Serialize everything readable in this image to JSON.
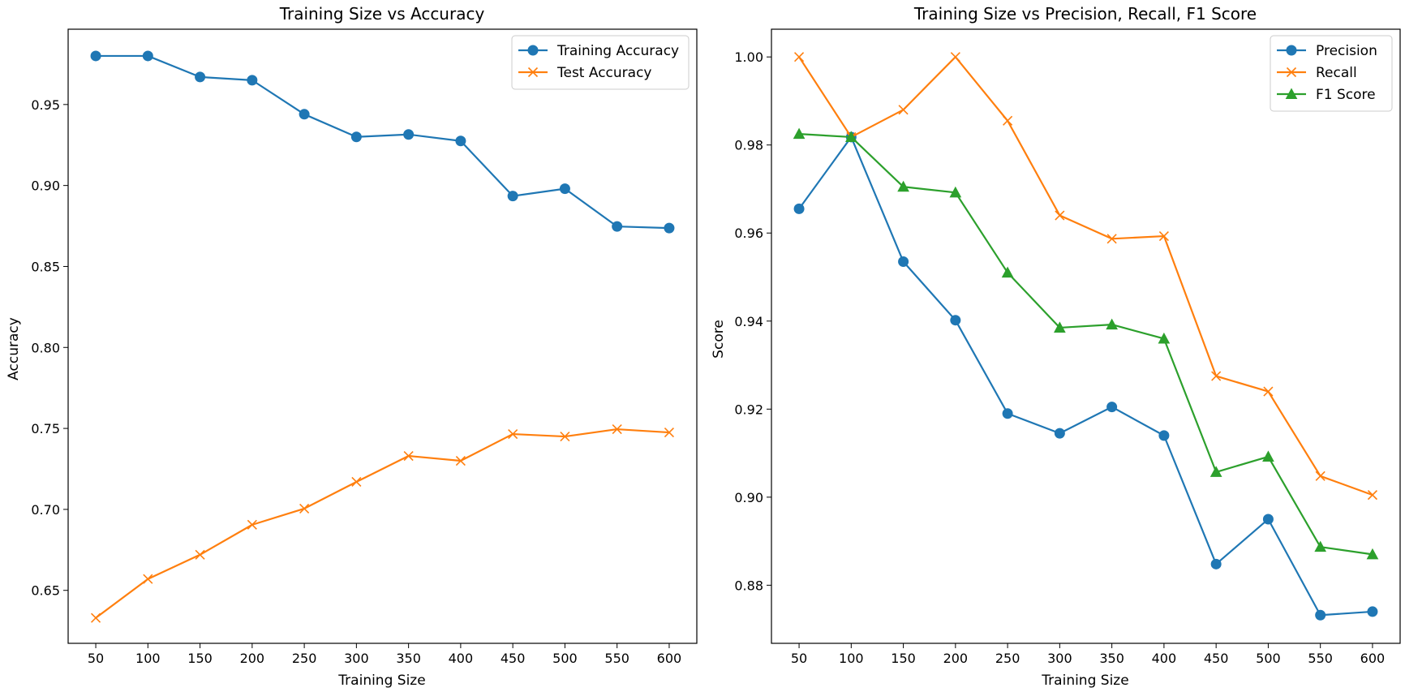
{
  "chart_data": [
    {
      "type": "line",
      "title": "Training Size vs Accuracy",
      "xlabel": "Training Size",
      "ylabel": "Accuracy",
      "x": [
        50,
        100,
        150,
        200,
        250,
        300,
        350,
        400,
        450,
        500,
        550,
        600
      ],
      "xticks": [
        "50",
        "100",
        "150",
        "200",
        "250",
        "300",
        "350",
        "400",
        "450",
        "500",
        "550",
        "600"
      ],
      "xlim": [
        23.5,
        626.5
      ],
      "ylim": [
        0.6173,
        0.9965
      ],
      "yticks": [
        "0.65",
        "0.70",
        "0.75",
        "0.80",
        "0.85",
        "0.90",
        "0.95"
      ],
      "ytick_values": [
        0.65,
        0.7,
        0.75,
        0.8,
        0.85,
        0.9,
        0.95
      ],
      "legend_position": "upper right",
      "grid": false,
      "series": [
        {
          "name": "Training Accuracy",
          "color": "#1f77b4",
          "marker": "circle",
          "values": [
            0.98,
            0.98,
            0.967,
            0.965,
            0.944,
            0.93,
            0.9315,
            0.9275,
            0.8935,
            0.898,
            0.8747,
            0.8737
          ]
        },
        {
          "name": "Test Accuracy",
          "color": "#ff7f0e",
          "marker": "x",
          "values": [
            0.633,
            0.657,
            0.672,
            0.6905,
            0.7005,
            0.717,
            0.733,
            0.73,
            0.7465,
            0.745,
            0.7495,
            0.7475
          ]
        }
      ]
    },
    {
      "type": "line",
      "title": "Training Size vs Precision, Recall, F1 Score",
      "xlabel": "Training Size",
      "ylabel": "Score",
      "x": [
        50,
        100,
        150,
        200,
        250,
        300,
        350,
        400,
        450,
        500,
        550,
        600
      ],
      "xticks": [
        "50",
        "100",
        "150",
        "200",
        "250",
        "300",
        "350",
        "400",
        "450",
        "500",
        "550",
        "600"
      ],
      "xlim": [
        23.5,
        626.5
      ],
      "ylim": [
        0.8668,
        1.0063
      ],
      "yticks": [
        "0.88",
        "0.90",
        "0.92",
        "0.94",
        "0.96",
        "0.98",
        "1.00"
      ],
      "ytick_values": [
        0.88,
        0.9,
        0.92,
        0.94,
        0.96,
        0.98,
        1.0
      ],
      "legend_position": "upper right",
      "grid": false,
      "series": [
        {
          "name": "Precision",
          "color": "#1f77b4",
          "marker": "circle",
          "values": [
            0.9655,
            0.9818,
            0.9535,
            0.9402,
            0.919,
            0.9145,
            0.9205,
            0.914,
            0.8848,
            0.895,
            0.8732,
            0.874
          ]
        },
        {
          "name": "Recall",
          "color": "#ff7f0e",
          "marker": "x",
          "values": [
            1.0,
            0.9818,
            0.988,
            1.0,
            0.9855,
            0.964,
            0.9587,
            0.9593,
            0.9275,
            0.924,
            0.9048,
            0.9005
          ]
        },
        {
          "name": "F1 Score",
          "color": "#2ca02c",
          "marker": "triangle",
          "values": [
            0.9825,
            0.9818,
            0.9705,
            0.9692,
            0.951,
            0.9385,
            0.9392,
            0.936,
            0.9057,
            0.9092,
            0.8887,
            0.887
          ]
        }
      ]
    }
  ]
}
